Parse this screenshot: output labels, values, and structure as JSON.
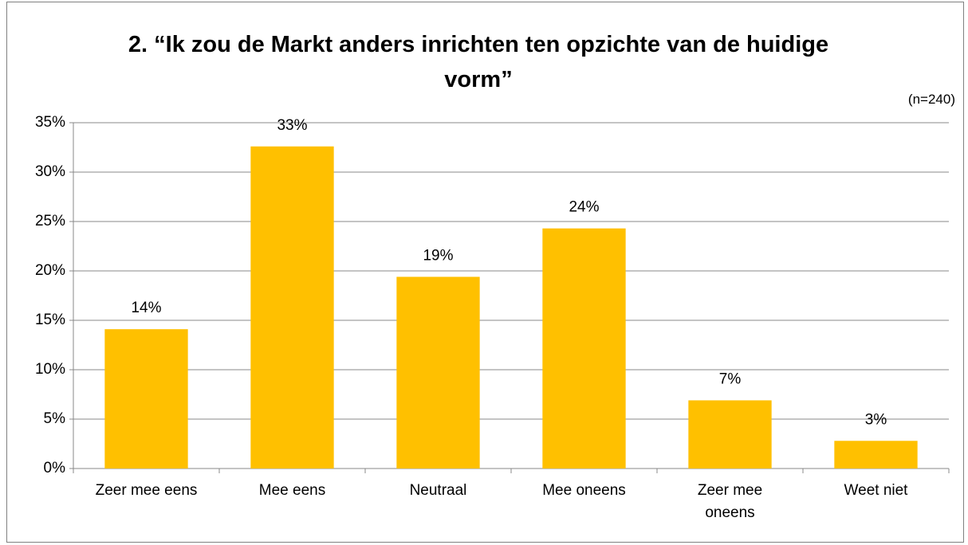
{
  "chart_data": {
    "type": "bar",
    "title": "2. “Ik zou de Markt anders inrichten ten opzichte van de huidige vorm”",
    "subtitle": "(n=240)",
    "categories": [
      "Zeer mee eens",
      "Mee eens",
      "Neutraal",
      "Mee oneens",
      "Zeer mee oneens",
      "Weet niet"
    ],
    "values": [
      14.1,
      32.6,
      19.4,
      24.3,
      6.9,
      2.8
    ],
    "value_labels": [
      "14%",
      "33%",
      "19%",
      "24%",
      "7%",
      "3%"
    ],
    "color": "#ffc000",
    "ylim": [
      0,
      35
    ],
    "yticks": [
      {
        "value": 0,
        "label": "0%"
      },
      {
        "value": 5,
        "label": "5%"
      },
      {
        "value": 10,
        "label": "10%"
      },
      {
        "value": 15,
        "label": "15%"
      },
      {
        "value": 20,
        "label": "20%"
      },
      {
        "value": 25,
        "label": "25%"
      },
      {
        "value": 30,
        "label": "30%"
      },
      {
        "value": 35,
        "label": "35%"
      }
    ],
    "grid": true
  }
}
